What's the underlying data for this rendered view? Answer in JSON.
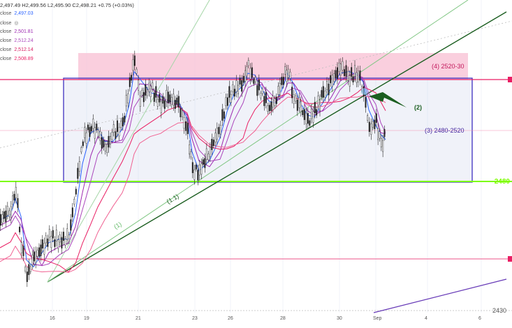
{
  "header": {
    "ohlc": "2,497.49  H2,499.56  L2,495.90  C2,498.21  +0.75 (+0.03%)"
  },
  "moving_averages": [
    {
      "label": "close",
      "value": "2,497.03",
      "color": "#2962ff",
      "show_value": true
    },
    {
      "label": "close",
      "value": "",
      "color": "#555555",
      "show_value": false,
      "icon": "eye-slash-icon"
    },
    {
      "label": "close",
      "value": "2,501.81",
      "color": "#9c27b0",
      "show_value": true
    },
    {
      "label": "close",
      "value": "2,512.24",
      "color": "#ab47bc",
      "show_value": true
    },
    {
      "label": "close",
      "value": "2,512.14",
      "color": "#d81b60",
      "show_value": true
    },
    {
      "label": "close",
      "value": "2,508.89",
      "color": "#e91e63",
      "show_value": true
    }
  ],
  "x_axis": [
    "16",
    "19",
    "21",
    "23",
    "26",
    "28",
    "30",
    "Sep",
    "4",
    "6"
  ],
  "price_labels": {
    "level_2480": "2480",
    "level_2430": "2430"
  },
  "annotations": {
    "zone_4": "(4) 2520-30",
    "zone_3": "(3) 2480-2520",
    "label_2": "(2)",
    "label_1": "(1)",
    "label_11": "(1.1)"
  },
  "colors": {
    "green_level": "#7cfc00",
    "pink_zone": "#f8bbd0",
    "purple_box": "#3f2fbf",
    "trendline_dark": "#1b5e20",
    "trendline_light": "#81c784",
    "pink_line": "#e91e63"
  }
}
